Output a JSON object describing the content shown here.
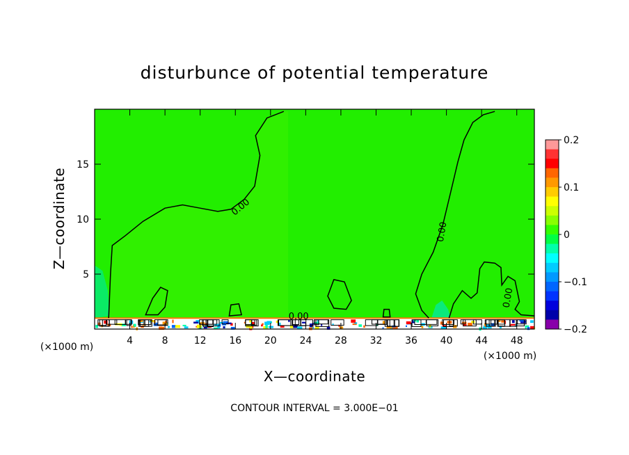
{
  "chart_data": {
    "type": "contour",
    "title": "disturbunce of potential temperature",
    "xlabel": "X—coordinate",
    "ylabel": "Z—coordinate",
    "x_unit": "(×1000 m)",
    "xlim": [
      0,
      50
    ],
    "ylim": [
      0,
      20
    ],
    "x_ticks": [
      4,
      8,
      12,
      16,
      20,
      24,
      28,
      32,
      36,
      40,
      44,
      48
    ],
    "y_ticks": [
      5,
      10,
      15
    ],
    "contour_interval_text": "CONTOUR INTERVAL = 3.000E−01",
    "contour_label": "0.00",
    "colorbar": {
      "ticks": [
        "0.2",
        "0.1",
        "0",
        "−0.1",
        "−0.2"
      ],
      "range": [
        -0.2,
        0.2
      ],
      "colors": [
        "#ff9999",
        "#ff3333",
        "#ff0000",
        "#ff6600",
        "#ff9900",
        "#ffcc00",
        "#ffff00",
        "#ccff00",
        "#88ff00",
        "#33ff00",
        "#00ff44",
        "#00ffaa",
        "#00ffff",
        "#00ccff",
        "#0099ff",
        "#0066ff",
        "#0033ff",
        "#0000dd",
        "#0000aa",
        "#8800aa"
      ]
    },
    "field_color": "#22ee00"
  }
}
